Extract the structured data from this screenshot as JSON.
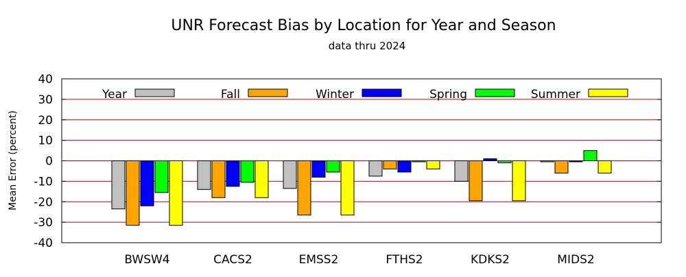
{
  "chart_data": {
    "type": "bar",
    "title": "UNR Forecast Bias by Location for Year and Season",
    "subtitle": "data thru 2024",
    "xlabel": "",
    "ylabel": "Mean Error (percent)",
    "ylim": [
      -40,
      40
    ],
    "yticks": [
      -40,
      -30,
      -20,
      -10,
      0,
      10,
      20,
      30,
      40
    ],
    "ytick_labels": [
      "-40",
      "-30",
      "-20",
      "-10",
      "0",
      "10",
      "20",
      "30",
      "40"
    ],
    "grid": "horizontal",
    "legend_position": "top",
    "categories": [
      "BWSW4",
      "CACS2",
      "EMSS2",
      "FTHS2",
      "KDKS2",
      "MIDS2"
    ],
    "series": [
      {
        "name": "Year",
        "color": "#c0c0c0",
        "values": [
          -23.5,
          -14,
          -13.5,
          -7.5,
          -10,
          -0.5
        ]
      },
      {
        "name": "Fall",
        "color": "#ffa500",
        "values": [
          -31.5,
          -18,
          -26.5,
          -4,
          -19.5,
          -6
        ]
      },
      {
        "name": "Winter",
        "color": "#0000ff",
        "values": [
          -22,
          -12.5,
          -8,
          -5.5,
          1,
          -0.5
        ]
      },
      {
        "name": "Spring",
        "color": "#00ff00",
        "values": [
          -15.5,
          -10.5,
          -5.5,
          -0.5,
          -1,
          5
        ]
      },
      {
        "name": "Summer",
        "color": "#ffff00",
        "values": [
          -31.5,
          -18,
          -26.5,
          -4,
          -19.5,
          -6
        ]
      }
    ],
    "gridline_color": "#cc0000"
  }
}
